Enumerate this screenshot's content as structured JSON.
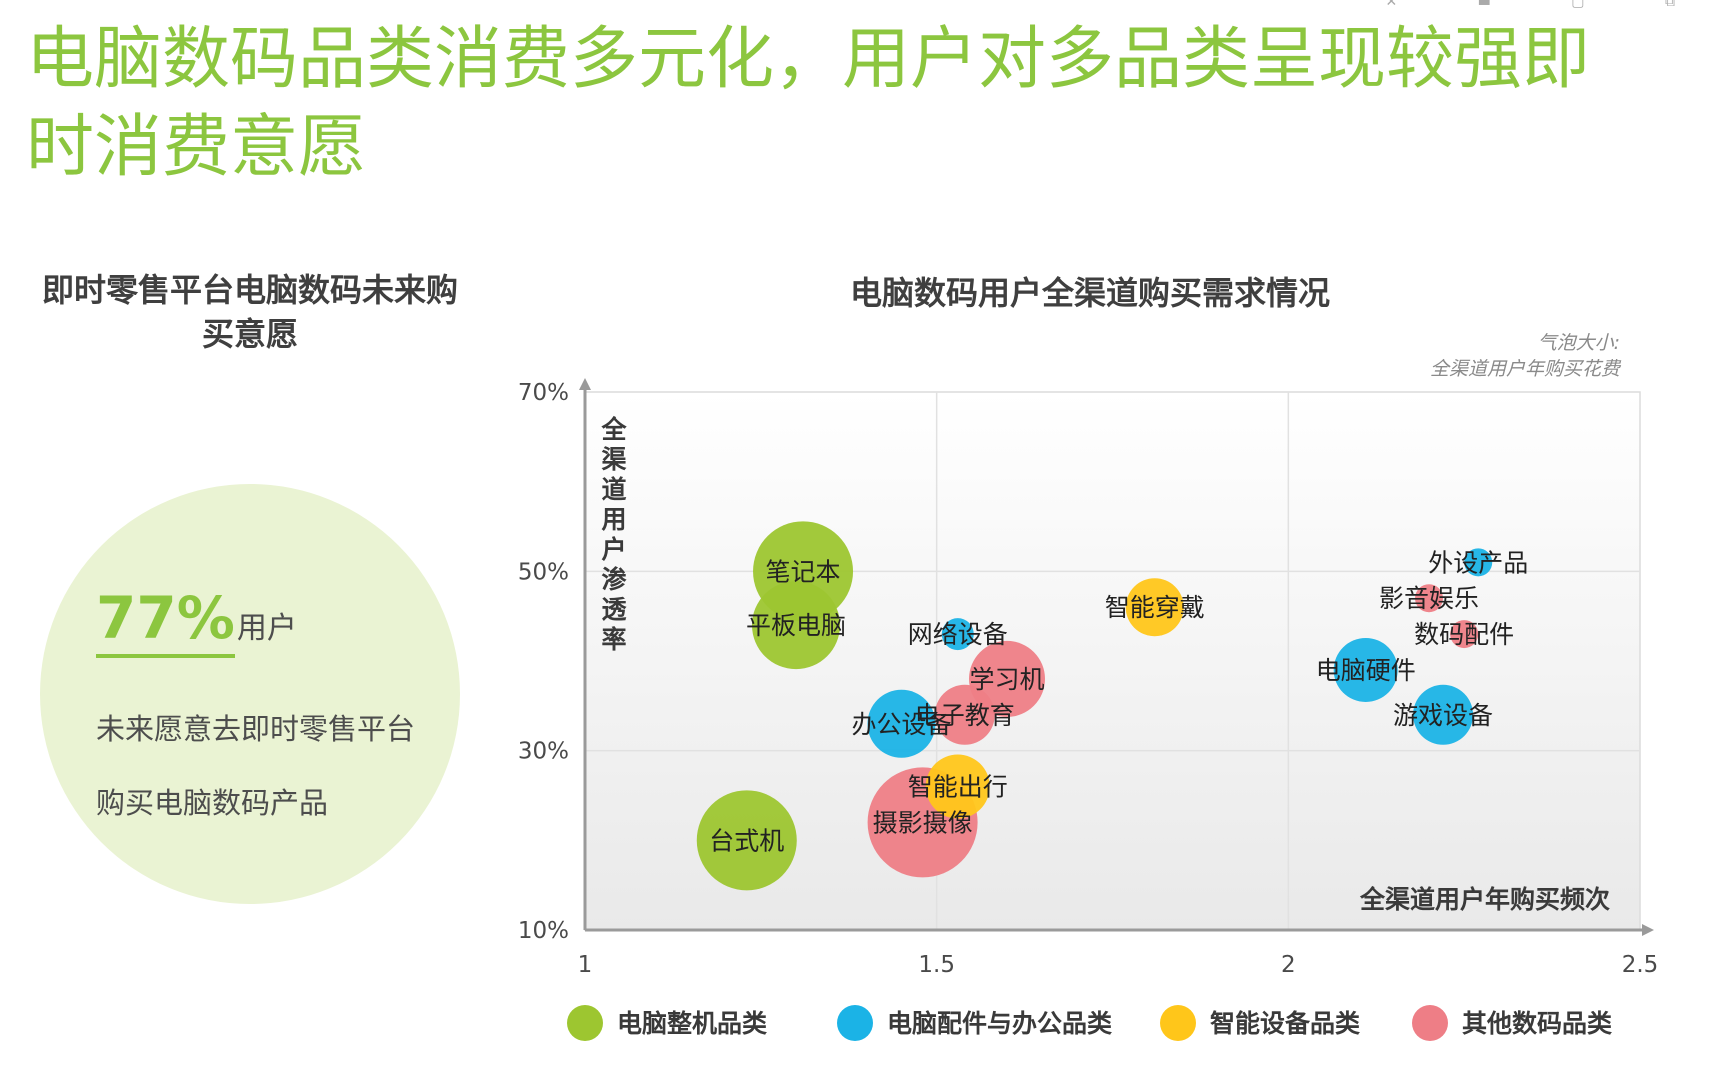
{
  "slide": {
    "title": "电脑数码品类消费多元化，用户对多品类呈现较强即时消费意愿"
  },
  "left_panel": {
    "title": "即时零售平台电脑数码未来购买意愿",
    "stat_value": "77%",
    "stat_unit": "用户",
    "description": "未来愿意去即时零售平台购买电脑数码产品",
    "circle_color": "#eaf3d3",
    "accent_color": "#8cc63f"
  },
  "chart_data": {
    "type": "scatter",
    "title": "电脑数码用户全渠道购买需求情况",
    "bubble_note": "气泡大小:\n全渠道用户年购买花费",
    "xlabel": "全渠道用户年购买频次",
    "ylabel": "全渠道用户渗透率",
    "xlim": [
      1,
      2.5
    ],
    "ylim": [
      0.1,
      0.7
    ],
    "x_ticks": [
      "1",
      "1.5",
      "2",
      "2.5"
    ],
    "y_ticks": [
      "10%",
      "30%",
      "50%",
      "70%"
    ],
    "grid": true,
    "legend_position": "bottom",
    "categories": [
      {
        "id": "pc",
        "name": "电脑整机品类",
        "color": "#9dc630"
      },
      {
        "id": "acc",
        "name": "电脑配件与办公品类",
        "color": "#1bb3e6"
      },
      {
        "id": "smart",
        "name": "智能设备品类",
        "color": "#ffc61a"
      },
      {
        "id": "other",
        "name": "其他数码品类",
        "color": "#ee7e86"
      }
    ],
    "points": [
      {
        "label": "笔记本",
        "x": 1.31,
        "y": 0.5,
        "size": 50,
        "category": "pc"
      },
      {
        "label": "平板电脑",
        "x": 1.3,
        "y": 0.44,
        "size": 44,
        "category": "pc"
      },
      {
        "label": "台式机",
        "x": 1.23,
        "y": 0.2,
        "size": 50,
        "category": "pc"
      },
      {
        "label": "网络设备",
        "x": 1.53,
        "y": 0.43,
        "size": 16,
        "category": "acc"
      },
      {
        "label": "办公设备",
        "x": 1.45,
        "y": 0.33,
        "size": 34,
        "category": "acc"
      },
      {
        "label": "电脑硬件",
        "x": 2.11,
        "y": 0.39,
        "size": 32,
        "category": "acc"
      },
      {
        "label": "游戏设备",
        "x": 2.22,
        "y": 0.34,
        "size": 30,
        "category": "acc"
      },
      {
        "label": "外设产品",
        "x": 2.27,
        "y": 0.51,
        "size": 14,
        "category": "acc"
      },
      {
        "label": "智能穿戴",
        "x": 1.81,
        "y": 0.46,
        "size": 29,
        "category": "smart"
      },
      {
        "label": "智能出行",
        "x": 1.53,
        "y": 0.26,
        "size": 32,
        "category": "smart"
      },
      {
        "label": "学习机",
        "x": 1.6,
        "y": 0.38,
        "size": 38,
        "category": "other"
      },
      {
        "label": "电子教育",
        "x": 1.54,
        "y": 0.34,
        "size": 30,
        "category": "other"
      },
      {
        "label": "摄影摄像",
        "x": 1.48,
        "y": 0.22,
        "size": 55,
        "category": "other"
      },
      {
        "label": "影音娱乐",
        "x": 2.2,
        "y": 0.47,
        "size": 14,
        "category": "other"
      },
      {
        "label": "数码配件",
        "x": 2.25,
        "y": 0.43,
        "size": 14,
        "category": "other"
      }
    ]
  }
}
